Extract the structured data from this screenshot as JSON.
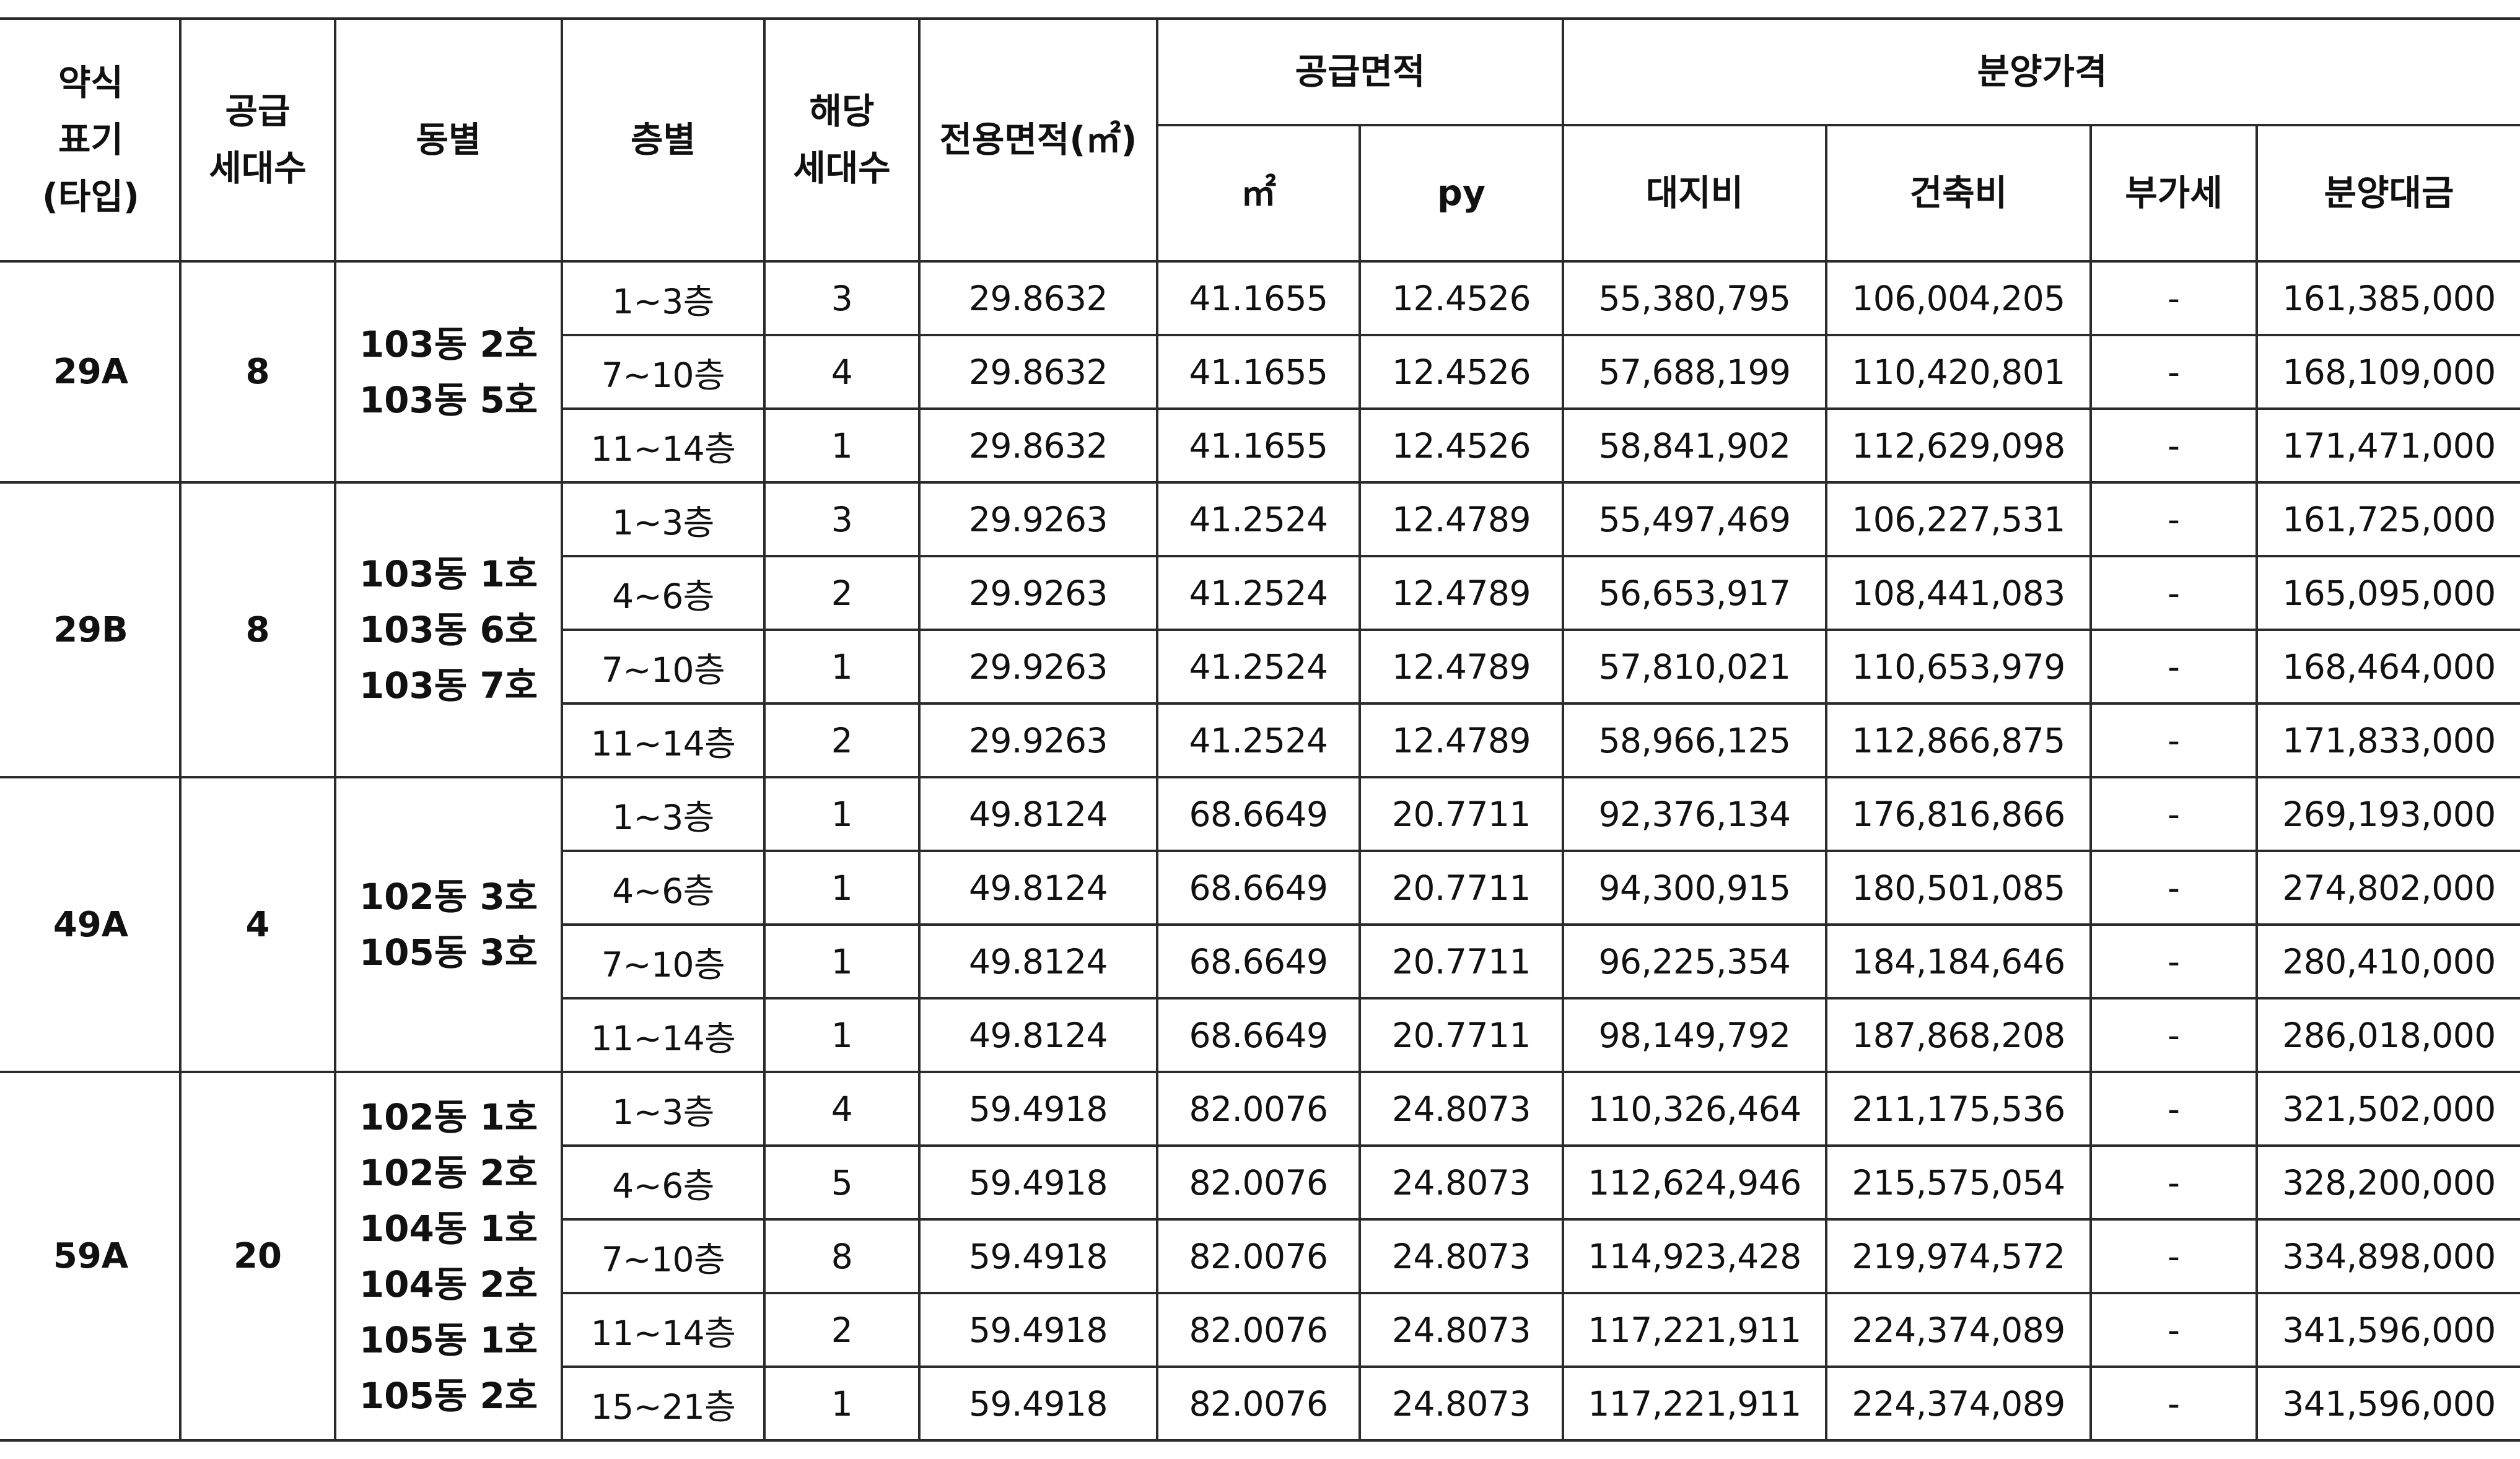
{
  "headers": {
    "type": [
      "약식",
      "표기",
      "(타입)"
    ],
    "supply_units": [
      "공급",
      "세대수"
    ],
    "dong": "동별",
    "floor": "층별",
    "units": [
      "해당",
      "세대수"
    ],
    "exclusive_area": "전용면적(㎡)",
    "supply_area": "공급면적",
    "supply_area_m2": "㎡",
    "supply_area_py": "py",
    "price": "분양가격",
    "land": "대지비",
    "building": "건축비",
    "vat": "부가세",
    "total": "분양대금"
  },
  "groups": [
    {
      "type": "29A",
      "supply_units": "8",
      "dongs": [
        "103동 2호",
        "103동 5호"
      ],
      "rows": [
        {
          "floor": "1~3층",
          "units": "3",
          "excl": "29.8632",
          "m2": "41.1655",
          "py": "12.4526",
          "land": "55,380,795",
          "build": "106,004,205",
          "vat": "-",
          "total": "161,385,000"
        },
        {
          "floor": "7~10층",
          "units": "4",
          "excl": "29.8632",
          "m2": "41.1655",
          "py": "12.4526",
          "land": "57,688,199",
          "build": "110,420,801",
          "vat": "-",
          "total": "168,109,000"
        },
        {
          "floor": "11~14층",
          "units": "1",
          "excl": "29.8632",
          "m2": "41.1655",
          "py": "12.4526",
          "land": "58,841,902",
          "build": "112,629,098",
          "vat": "-",
          "total": "171,471,000"
        }
      ]
    },
    {
      "type": "29B",
      "supply_units": "8",
      "dongs": [
        "103동 1호",
        "103동 6호",
        "103동 7호"
      ],
      "rows": [
        {
          "floor": "1~3층",
          "units": "3",
          "excl": "29.9263",
          "m2": "41.2524",
          "py": "12.4789",
          "land": "55,497,469",
          "build": "106,227,531",
          "vat": "-",
          "total": "161,725,000"
        },
        {
          "floor": "4~6층",
          "units": "2",
          "excl": "29.9263",
          "m2": "41.2524",
          "py": "12.4789",
          "land": "56,653,917",
          "build": "108,441,083",
          "vat": "-",
          "total": "165,095,000"
        },
        {
          "floor": "7~10층",
          "units": "1",
          "excl": "29.9263",
          "m2": "41.2524",
          "py": "12.4789",
          "land": "57,810,021",
          "build": "110,653,979",
          "vat": "-",
          "total": "168,464,000"
        },
        {
          "floor": "11~14층",
          "units": "2",
          "excl": "29.9263",
          "m2": "41.2524",
          "py": "12.4789",
          "land": "58,966,125",
          "build": "112,866,875",
          "vat": "-",
          "total": "171,833,000"
        }
      ]
    },
    {
      "type": "49A",
      "supply_units": "4",
      "dongs": [
        "102동 3호",
        "105동 3호"
      ],
      "rows": [
        {
          "floor": "1~3층",
          "units": "1",
          "excl": "49.8124",
          "m2": "68.6649",
          "py": "20.7711",
          "land": "92,376,134",
          "build": "176,816,866",
          "vat": "-",
          "total": "269,193,000"
        },
        {
          "floor": "4~6층",
          "units": "1",
          "excl": "49.8124",
          "m2": "68.6649",
          "py": "20.7711",
          "land": "94,300,915",
          "build": "180,501,085",
          "vat": "-",
          "total": "274,802,000"
        },
        {
          "floor": "7~10층",
          "units": "1",
          "excl": "49.8124",
          "m2": "68.6649",
          "py": "20.7711",
          "land": "96,225,354",
          "build": "184,184,646",
          "vat": "-",
          "total": "280,410,000"
        },
        {
          "floor": "11~14층",
          "units": "1",
          "excl": "49.8124",
          "m2": "68.6649",
          "py": "20.7711",
          "land": "98,149,792",
          "build": "187,868,208",
          "vat": "-",
          "total": "286,018,000"
        }
      ]
    },
    {
      "type": "59A",
      "supply_units": "20",
      "dongs": [
        "102동 1호",
        "102동 2호",
        "104동 1호",
        "104동 2호",
        "105동 1호",
        "105동 2호"
      ],
      "rows": [
        {
          "floor": "1~3층",
          "units": "4",
          "excl": "59.4918",
          "m2": "82.0076",
          "py": "24.8073",
          "land": "110,326,464",
          "build": "211,175,536",
          "vat": "-",
          "total": "321,502,000"
        },
        {
          "floor": "4~6층",
          "units": "5",
          "excl": "59.4918",
          "m2": "82.0076",
          "py": "24.8073",
          "land": "112,624,946",
          "build": "215,575,054",
          "vat": "-",
          "total": "328,200,000"
        },
        {
          "floor": "7~10층",
          "units": "8",
          "excl": "59.4918",
          "m2": "82.0076",
          "py": "24.8073",
          "land": "114,923,428",
          "build": "219,974,572",
          "vat": "-",
          "total": "334,898,000"
        },
        {
          "floor": "11~14층",
          "units": "2",
          "excl": "59.4918",
          "m2": "82.0076",
          "py": "24.8073",
          "land": "117,221,911",
          "build": "224,374,089",
          "vat": "-",
          "total": "341,596,000"
        },
        {
          "floor": "15~21층",
          "units": "1",
          "excl": "59.4918",
          "m2": "82.0076",
          "py": "24.8073",
          "land": "117,221,911",
          "build": "224,374,089",
          "vat": "-",
          "total": "341,596,000"
        }
      ]
    }
  ]
}
